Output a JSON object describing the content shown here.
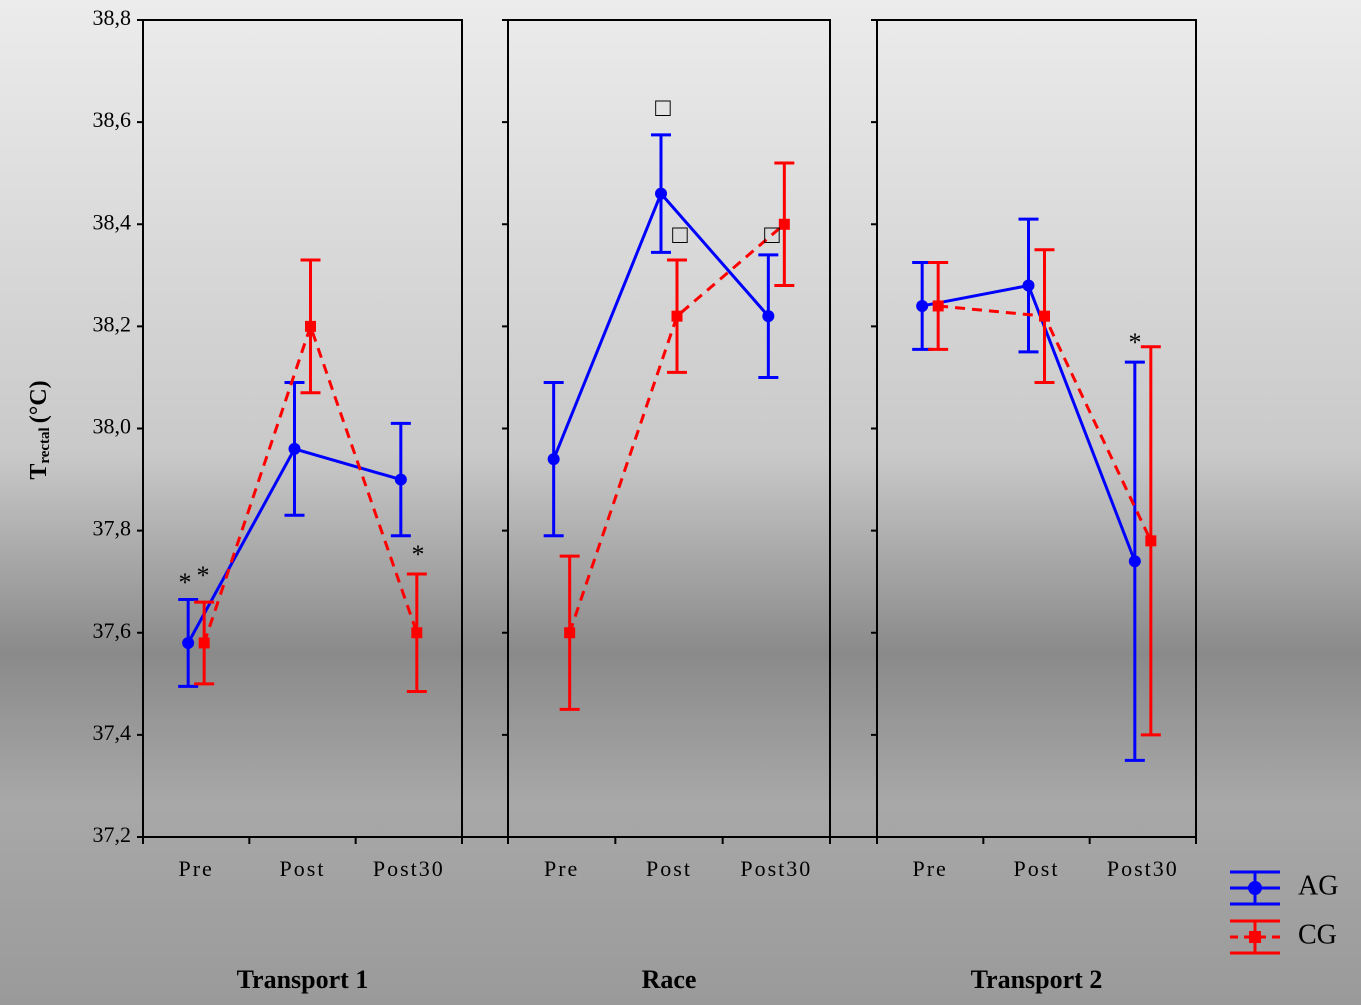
{
  "chart_data": [
    {
      "type": "line",
      "title": "Transport 1",
      "ylabel": "T",
      "ylabel_subscript": "rectal",
      "ylabel_unit": "(°C)",
      "categories": [
        "Pre",
        "Post",
        "Post30"
      ],
      "series": [
        {
          "name": "AG",
          "color": "#0000ff",
          "dashed": false,
          "marker": "circle",
          "values": [
            37.58,
            37.96,
            37.9
          ],
          "errors": [
            0.085,
            0.13,
            0.11
          ]
        },
        {
          "name": "CG",
          "color": "#ff0000",
          "dashed": true,
          "marker": "square",
          "values": [
            37.58,
            38.2,
            37.6
          ],
          "errors": [
            0.08,
            0.13,
            0.115
          ]
        }
      ],
      "annotations": [
        "*",
        "*",
        "*"
      ],
      "ylim": [
        37.2,
        38.8
      ],
      "yticks": [
        {
          "value": 37.2,
          "label": "37,2"
        },
        {
          "value": 37.4,
          "label": "37,4"
        },
        {
          "value": 37.6,
          "label": "37,6"
        },
        {
          "value": 37.8,
          "label": "37,8"
        },
        {
          "value": 38.0,
          "label": "38,0"
        },
        {
          "value": 38.2,
          "label": "38,2"
        },
        {
          "value": 38.4,
          "label": "38,4"
        },
        {
          "value": 38.6,
          "label": "38,6"
        },
        {
          "value": 38.8,
          "label": "38,8"
        }
      ]
    },
    {
      "type": "line",
      "title": "Race",
      "categories": [
        "Pre",
        "Post",
        "Post30"
      ],
      "series": [
        {
          "color": "#0000ff",
          "dashed": false,
          "marker": "circle",
          "values": [
            37.94,
            38.46,
            38.22
          ],
          "errors": [
            0.15,
            0.115,
            0.12
          ]
        },
        {
          "color": "#ff0000",
          "dashed": true,
          "marker": "square",
          "values": [
            37.6,
            38.22,
            38.4
          ],
          "errors": [
            0.15,
            0.11,
            0.12
          ]
        }
      ],
      "annotations": [
        "□",
        "□",
        "□"
      ],
      "ylim": [
        37.2,
        38.8
      ],
      "yticks": [
        37.2,
        37.4,
        37.6,
        37.8,
        38.0,
        38.2,
        38.4,
        38.6,
        38.8
      ]
    },
    {
      "type": "line",
      "title": "Transport 2",
      "categories": [
        "Pre",
        "Post",
        "Post30"
      ],
      "series": [
        {
          "color": "#0000ff",
          "dashed": false,
          "marker": "circle",
          "values": [
            38.24,
            38.28,
            37.74
          ],
          "errors": [
            0.085,
            0.13,
            0.39
          ]
        },
        {
          "color": "#ff0000",
          "dashed": true,
          "marker": "square",
          "values": [
            38.24,
            38.22,
            37.78
          ],
          "errors": [
            0.085,
            0.13,
            0.38
          ]
        }
      ],
      "annotations": [
        "*"
      ],
      "ylim": [
        37.2,
        38.8
      ],
      "yticks": [
        37.2,
        37.4,
        37.6,
        37.8,
        38.0,
        38.2,
        38.4,
        38.6,
        38.8
      ]
    }
  ]
}
